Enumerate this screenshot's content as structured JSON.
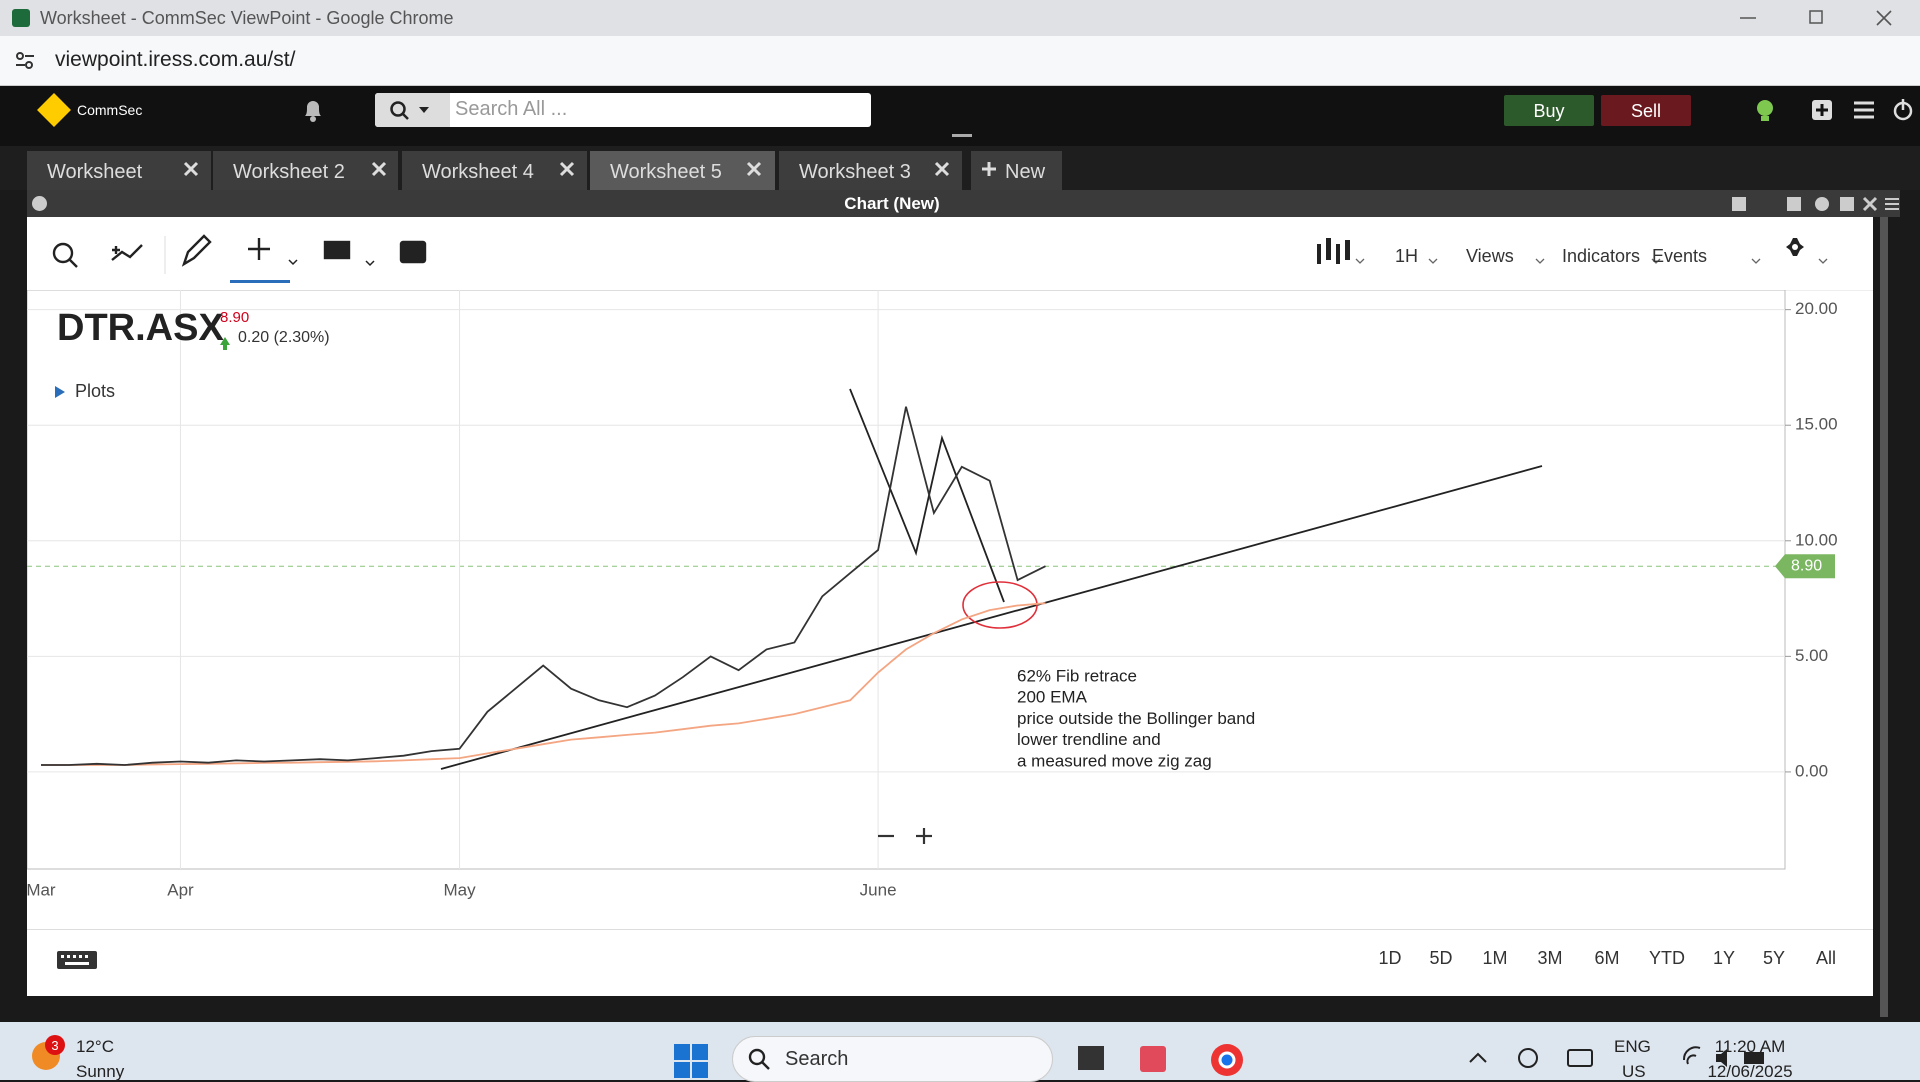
{
  "window": {
    "title": "Worksheet - CommSec ViewPoint - Google Chrome",
    "url": "viewpoint.iress.com.au/st/"
  },
  "header": {
    "brand": "CommSec",
    "search_placeholder": "Search All ...",
    "buy": "Buy",
    "sell": "Sell"
  },
  "tabs": [
    "Worksheet",
    "Worksheet 2",
    "Worksheet 4",
    "Worksheet 5",
    "Worksheet 3"
  ],
  "new_tab": "New",
  "panel": {
    "title": "Chart (New)"
  },
  "toolbar": {
    "interval": "1H",
    "views": "Views",
    "indicators": "Indicators",
    "events": "Events"
  },
  "ranges": [
    "1D",
    "5D",
    "1M",
    "3M",
    "6M",
    "YTD",
    "1Y",
    "5Y",
    "All"
  ],
  "chart_data": {
    "type": "line",
    "symbol": "DTR.ASX",
    "last": "8.90",
    "change": "0.20 (2.30%)",
    "plots": "Plots",
    "annotation": [
      "62% Fib retrace",
      "200 EMA",
      "price outside the Bollinger band",
      "lower trendline and",
      "a measured move zig zag"
    ],
    "categories": [
      "Mar",
      null,
      null,
      null,
      null,
      "Apr",
      null,
      null,
      null,
      null,
      null,
      null,
      null,
      null,
      null,
      "May",
      null,
      null,
      null,
      null,
      null,
      null,
      null,
      null,
      null,
      null,
      null,
      null,
      null,
      null,
      "June",
      null,
      null,
      null,
      null,
      null,
      null,
      null,
      null,
      null,
      null,
      null,
      null,
      null,
      null,
      null,
      null,
      null,
      null,
      null,
      null,
      null,
      null,
      null,
      null,
      null,
      null,
      null,
      null,
      null,
      null,
      null,
      null
    ],
    "series": [
      {
        "color": "#333333",
        "values": [
          0.3,
          0.3,
          0.35,
          0.3,
          0.4,
          0.45,
          0.4,
          0.5,
          0.45,
          0.5,
          0.55,
          0.5,
          0.6,
          0.7,
          0.9,
          1.0,
          2.6,
          3.6,
          4.6,
          3.6,
          3.1,
          2.8,
          3.3,
          4.1,
          5.0,
          4.4,
          5.3,
          5.6,
          7.6,
          8.6,
          9.6,
          15.8,
          11.2,
          13.2,
          12.6,
          8.3,
          8.9,
          null,
          null,
          null,
          null,
          null,
          null,
          null,
          null,
          null,
          null,
          null,
          null,
          null,
          null,
          null,
          null,
          null,
          null,
          null,
          null,
          null,
          null,
          null,
          null,
          null,
          null
        ]
      },
      {
        "color": "#f4a582",
        "values": [
          0.3,
          0.3,
          0.3,
          0.3,
          0.32,
          0.34,
          0.35,
          0.37,
          0.39,
          0.4,
          0.42,
          0.44,
          0.46,
          0.5,
          0.55,
          0.6,
          0.8,
          1.0,
          1.2,
          1.4,
          1.5,
          1.6,
          1.7,
          1.85,
          2.0,
          2.1,
          2.3,
          2.5,
          2.8,
          3.1,
          4.3,
          5.3,
          6.0,
          6.6,
          7.0,
          7.2,
          7.3,
          null,
          null,
          null,
          null,
          null,
          null,
          null,
          null,
          null,
          null,
          null,
          null,
          null,
          null,
          null,
          null,
          null,
          null,
          null,
          null,
          null,
          null,
          null,
          null,
          null,
          null
        ]
      }
    ],
    "price_line": {
      "value": 8.9,
      "label": "8.90"
    },
    "ylim": [
      -4.2,
      20.85
    ],
    "yticks": [
      {
        "value": 0,
        "label": "0.00"
      },
      {
        "value": 5,
        "label": "5.00"
      },
      {
        "value": 10,
        "label": "10.00"
      },
      {
        "value": 15,
        "label": "15.00"
      },
      {
        "value": 20,
        "label": "20.00"
      }
    ],
    "grid": true
  },
  "taskbar": {
    "badge": "3",
    "temperature": "12°C",
    "weather": "Sunny",
    "search": "Search",
    "lang": "ENG",
    "region": "US",
    "time": "11:20 AM",
    "date": "12/06/2025"
  }
}
